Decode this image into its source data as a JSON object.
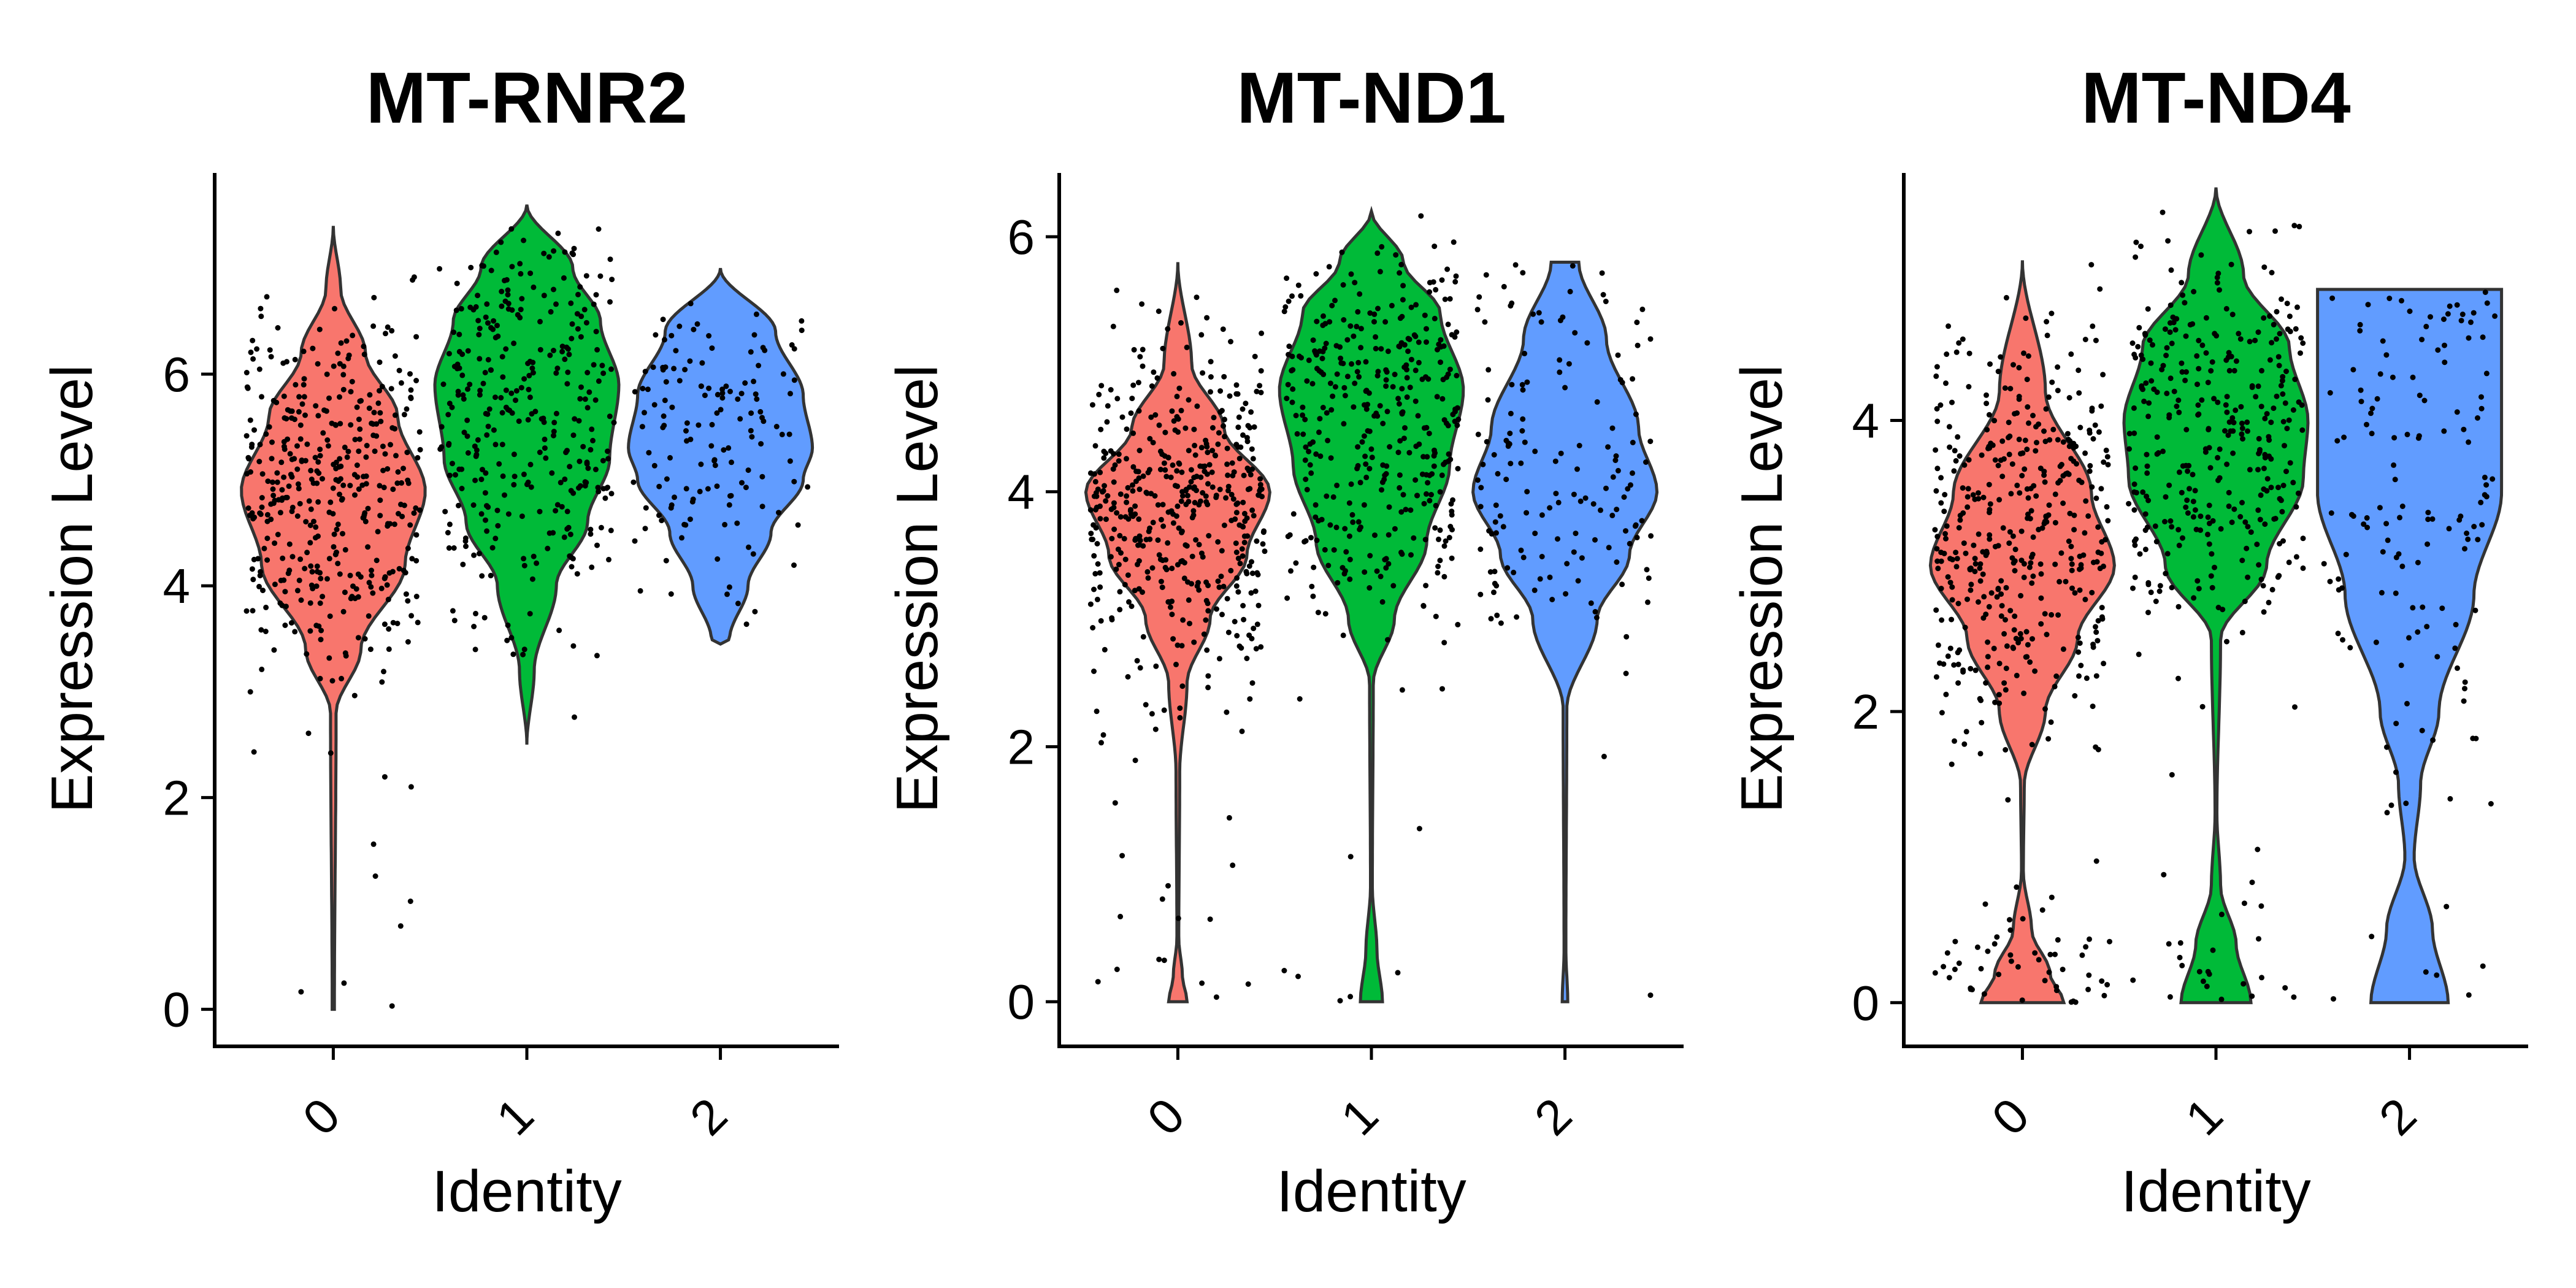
{
  "colors": {
    "group0": "#F8766D",
    "group1": "#00BA38",
    "group2": "#619CFF",
    "points": "#000000",
    "outline": "#333333"
  },
  "chart_data": [
    {
      "type": "violin",
      "title": "MT-RNR2",
      "xlabel": "Identity",
      "ylabel": "Expression Level",
      "categories": [
        "0",
        "1",
        "2"
      ],
      "ylim": [
        -0.35,
        7.9
      ],
      "yticks": [
        0,
        2,
        4,
        6
      ],
      "grid": false,
      "legend": "none",
      "groups": [
        {
          "name": "0",
          "min": 0.0,
          "max": 7.4,
          "mode": 4.9,
          "n": 420,
          "profile": [
            [
              0.0,
              0.012
            ],
            [
              2.8,
              0.03
            ],
            [
              3.4,
              0.3
            ],
            [
              4.2,
              0.78
            ],
            [
              4.9,
              1.0
            ],
            [
              5.6,
              0.7
            ],
            [
              6.2,
              0.35
            ],
            [
              6.8,
              0.08
            ],
            [
              7.4,
              0.0
            ]
          ]
        },
        {
          "name": "1",
          "min": 2.5,
          "max": 7.6,
          "mode": 5.8,
          "n": 330,
          "profile": [
            [
              2.5,
              0.0
            ],
            [
              3.2,
              0.08
            ],
            [
              4.0,
              0.32
            ],
            [
              4.6,
              0.66
            ],
            [
              5.2,
              0.9
            ],
            [
              5.9,
              1.0
            ],
            [
              6.5,
              0.8
            ],
            [
              7.0,
              0.5
            ],
            [
              7.6,
              0.0
            ]
          ]
        },
        {
          "name": "2",
          "min": 3.45,
          "max": 7.0,
          "mode": 5.2,
          "n": 140,
          "profile": [
            [
              3.45,
              0.0
            ],
            [
              3.5,
              0.1
            ],
            [
              4.0,
              0.3
            ],
            [
              4.5,
              0.55
            ],
            [
              5.0,
              0.9
            ],
            [
              5.3,
              1.0
            ],
            [
              5.8,
              0.9
            ],
            [
              6.4,
              0.6
            ],
            [
              7.0,
              0.0
            ]
          ]
        }
      ]
    },
    {
      "type": "violin",
      "title": "MT-ND1",
      "xlabel": "Identity",
      "ylabel": "Expression Level",
      "categories": [
        "0",
        "1",
        "2"
      ],
      "ylim": [
        -0.35,
        6.5
      ],
      "yticks": [
        0,
        2,
        4,
        6
      ],
      "grid": false,
      "legend": "none",
      "groups": [
        {
          "name": "0",
          "min": 0.0,
          "max": 5.8,
          "mode": 3.9,
          "n": 480,
          "profile": [
            [
              0.0,
              0.1
            ],
            [
              0.2,
              0.05
            ],
            [
              0.5,
              0.01
            ],
            [
              1.8,
              0.02
            ],
            [
              2.5,
              0.1
            ],
            [
              3.0,
              0.35
            ],
            [
              3.5,
              0.75
            ],
            [
              4.0,
              1.0
            ],
            [
              4.5,
              0.5
            ],
            [
              5.0,
              0.15
            ],
            [
              5.8,
              0.0
            ]
          ]
        },
        {
          "name": "1",
          "min": 0.0,
          "max": 6.2,
          "mode": 4.8,
          "n": 380,
          "profile": [
            [
              0.0,
              0.12
            ],
            [
              0.4,
              0.06
            ],
            [
              0.9,
              0.01
            ],
            [
              2.5,
              0.02
            ],
            [
              3.0,
              0.25
            ],
            [
              3.6,
              0.6
            ],
            [
              4.2,
              0.85
            ],
            [
              4.8,
              1.0
            ],
            [
              5.4,
              0.75
            ],
            [
              5.8,
              0.35
            ],
            [
              6.2,
              0.0
            ]
          ]
        },
        {
          "name": "2",
          "min": 0.0,
          "max": 5.8,
          "mode": 4.0,
          "n": 150,
          "profile": [
            [
              0.0,
              0.03
            ],
            [
              0.4,
              0.01
            ],
            [
              2.3,
              0.02
            ],
            [
              3.0,
              0.35
            ],
            [
              3.5,
              0.7
            ],
            [
              4.0,
              1.0
            ],
            [
              4.5,
              0.8
            ],
            [
              5.2,
              0.45
            ],
            [
              5.8,
              0.15
            ]
          ]
        }
      ]
    },
    {
      "type": "violin",
      "title": "MT-ND4",
      "xlabel": "Identity",
      "ylabel": "Expression Level",
      "categories": [
        "0",
        "1",
        "2"
      ],
      "ylim": [
        -0.3,
        5.7
      ],
      "yticks": [
        0,
        2,
        4
      ],
      "grid": false,
      "legend": "none",
      "groups": [
        {
          "name": "0",
          "min": 0.0,
          "max": 5.1,
          "mode": 3.0,
          "n": 460,
          "profile": [
            [
              0.0,
              0.45
            ],
            [
              0.2,
              0.3
            ],
            [
              0.5,
              0.1
            ],
            [
              0.9,
              0.01
            ],
            [
              1.5,
              0.02
            ],
            [
              2.0,
              0.25
            ],
            [
              2.5,
              0.6
            ],
            [
              3.0,
              1.0
            ],
            [
              3.5,
              0.75
            ],
            [
              4.2,
              0.25
            ],
            [
              5.1,
              0.0
            ]
          ]
        },
        {
          "name": "1",
          "min": 0.0,
          "max": 5.6,
          "mode": 4.0,
          "n": 360,
          "profile": [
            [
              0.0,
              0.38
            ],
            [
              0.4,
              0.22
            ],
            [
              0.8,
              0.05
            ],
            [
              1.3,
              0.01
            ],
            [
              2.5,
              0.05
            ],
            [
              3.0,
              0.55
            ],
            [
              3.6,
              0.95
            ],
            [
              4.0,
              1.0
            ],
            [
              4.5,
              0.8
            ],
            [
              5.0,
              0.3
            ],
            [
              5.6,
              0.0
            ]
          ]
        },
        {
          "name": "2",
          "min": 0.0,
          "max": 4.9,
          "mode": 3.5,
          "n": 140,
          "profile": [
            [
              0.0,
              0.42
            ],
            [
              0.5,
              0.25
            ],
            [
              1.0,
              0.05
            ],
            [
              1.5,
              0.12
            ],
            [
              2.0,
              0.32
            ],
            [
              2.8,
              0.7
            ],
            [
              3.5,
              1.0
            ],
            [
              4.2,
              1.0
            ],
            [
              4.9,
              1.0
            ]
          ]
        }
      ]
    }
  ]
}
